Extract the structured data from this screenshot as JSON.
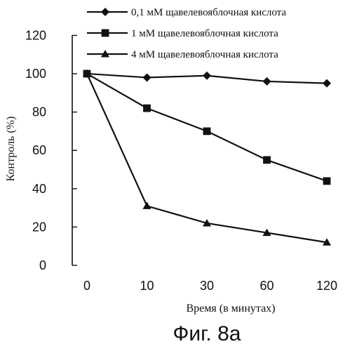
{
  "chart_data": {
    "type": "line",
    "title": "",
    "caption": "Фиг. 8а",
    "xlabel": "Время (в минутах)",
    "ylabel": "Контроль (%)",
    "categories": [
      "0",
      "10",
      "30",
      "60",
      "120"
    ],
    "ylim": [
      0,
      120
    ],
    "yticks": [
      "0",
      "20",
      "40",
      "60",
      "80",
      "100",
      "120"
    ],
    "grid": false,
    "legend_position": "top-right",
    "series": [
      {
        "name": "0,1 мМ щавелевояблочная кислота",
        "marker": "diamond",
        "values": [
          100,
          98,
          99,
          96,
          95
        ]
      },
      {
        "name": "1 мМ щавелевояблочная кислота",
        "marker": "square",
        "values": [
          100,
          82,
          70,
          55,
          44
        ]
      },
      {
        "name": "4 мМ щавелевояблочная кислота",
        "marker": "triangle",
        "values": [
          100,
          31,
          22,
          17,
          12
        ]
      }
    ],
    "colors": {
      "ink": "#111111",
      "background": "#ffffff"
    }
  }
}
